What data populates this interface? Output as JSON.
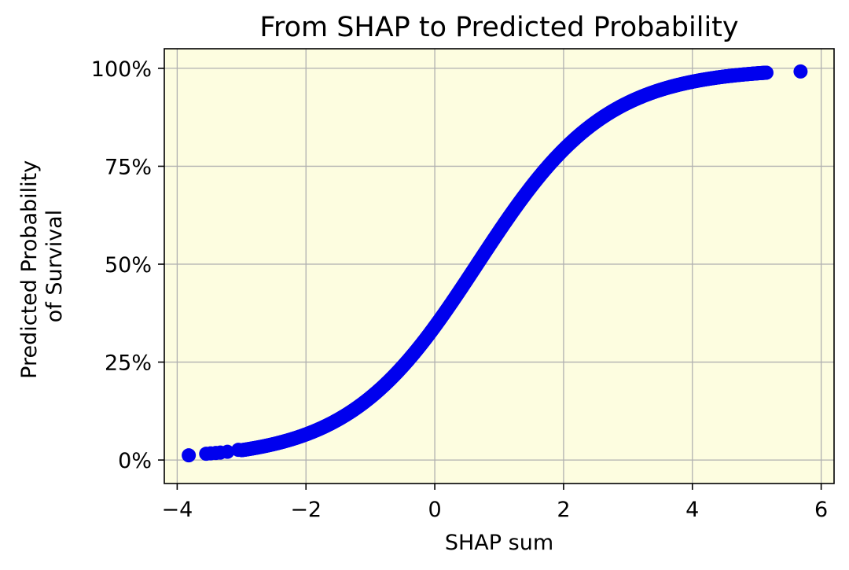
{
  "colors": {
    "plot_background": "#fdfde0",
    "marker": "#0000ee",
    "grid": "#b0b0b0",
    "axis": "#000000"
  },
  "chart_data": {
    "type": "scatter",
    "title": "From SHAP to Predicted Probability",
    "xlabel": "SHAP sum",
    "ylabel_lines": [
      "Predicted Probability",
      "of Survival"
    ],
    "xlim": [
      -4.2,
      6.2
    ],
    "ylim": [
      -0.06,
      1.05
    ],
    "x_ticks": [
      -4,
      -2,
      0,
      2,
      4,
      6
    ],
    "x_tick_labels": [
      "−4",
      "−2",
      "0",
      "2",
      "4",
      "6"
    ],
    "y_ticks": [
      0,
      0.25,
      0.5,
      0.75,
      1.0
    ],
    "y_tick_labels": [
      "0%",
      "25%",
      "50%",
      "75%",
      "100%"
    ],
    "grid": true,
    "legend": "none",
    "curve": {
      "description": "logistic sigmoid of SHAP sum, densely sampled",
      "x_start": -3.0,
      "x_end": 5.15,
      "offset": 0.66
    },
    "series": [
      {
        "marker": "circle",
        "points": [
          {
            "x": -3.82,
            "y": 0.012
          },
          {
            "x": -3.55,
            "y": 0.016
          },
          {
            "x": -3.48,
            "y": 0.017
          },
          {
            "x": -3.4,
            "y": 0.018
          },
          {
            "x": -3.33,
            "y": 0.019
          },
          {
            "x": -3.22,
            "y": 0.021
          },
          {
            "x": -3.05,
            "y": 0.026
          },
          {
            "x": 5.68,
            "y": 0.992
          }
        ]
      }
    ]
  }
}
